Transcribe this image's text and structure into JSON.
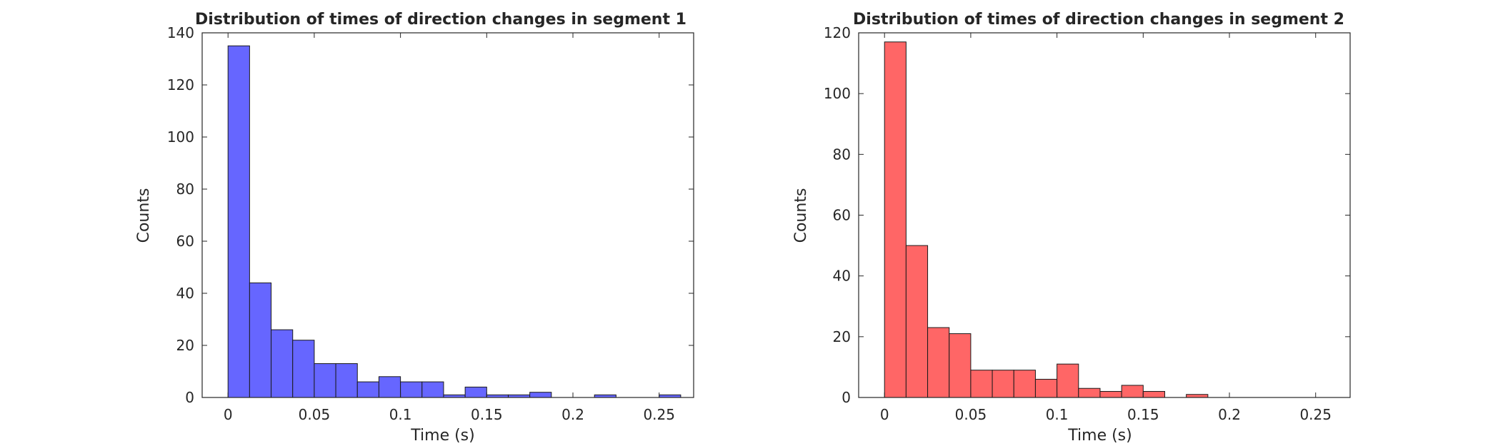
{
  "chart_data": [
    {
      "type": "bar",
      "title": "Distribution of times of direction changes in segment 1",
      "xlabel": "Time (s)",
      "ylabel": "Counts",
      "xlim": [
        -0.015,
        0.27
      ],
      "ylim": [
        0,
        140
      ],
      "xticks": [
        0,
        0.05,
        0.1,
        0.15,
        0.2,
        0.25
      ],
      "xtick_labels": [
        "0",
        "0.05",
        "0.1",
        "0.15",
        "0.2",
        "0.25"
      ],
      "yticks": [
        0,
        20,
        40,
        60,
        80,
        100,
        120,
        140
      ],
      "ytick_labels": [
        "0",
        "20",
        "40",
        "60",
        "80",
        "100",
        "120",
        "140"
      ],
      "bin_edges": [
        0,
        0.0125,
        0.025,
        0.0375,
        0.05,
        0.0625,
        0.075,
        0.0875,
        0.1,
        0.1125,
        0.125,
        0.1375,
        0.15,
        0.1625,
        0.175,
        0.1875,
        0.2,
        0.2125,
        0.225,
        0.2375,
        0.25,
        0.2625
      ],
      "values": [
        135,
        44,
        26,
        22,
        13,
        13,
        6,
        8,
        6,
        6,
        1,
        4,
        1,
        1,
        2,
        0,
        0,
        1,
        0,
        0,
        1
      ],
      "color": "#6666ff"
    },
    {
      "type": "bar",
      "title": "Distribution of times of direction changes in segment 2",
      "xlabel": "Time (s)",
      "ylabel": "Counts",
      "xlim": [
        -0.015,
        0.27
      ],
      "ylim": [
        0,
        120
      ],
      "xticks": [
        0,
        0.05,
        0.1,
        0.15,
        0.2,
        0.25
      ],
      "xtick_labels": [
        "0",
        "0.05",
        "0.1",
        "0.15",
        "0.2",
        "0.25"
      ],
      "yticks": [
        0,
        20,
        40,
        60,
        80,
        100,
        120
      ],
      "ytick_labels": [
        "0",
        "20",
        "40",
        "60",
        "80",
        "100",
        "120"
      ],
      "bin_edges": [
        0,
        0.0125,
        0.025,
        0.0375,
        0.05,
        0.0625,
        0.075,
        0.0875,
        0.1,
        0.1125,
        0.125,
        0.1375,
        0.15,
        0.1625,
        0.175,
        0.1875
      ],
      "values": [
        117,
        50,
        23,
        21,
        9,
        9,
        9,
        6,
        11,
        3,
        2,
        4,
        2,
        0,
        1
      ],
      "color": "#ff6666"
    }
  ]
}
